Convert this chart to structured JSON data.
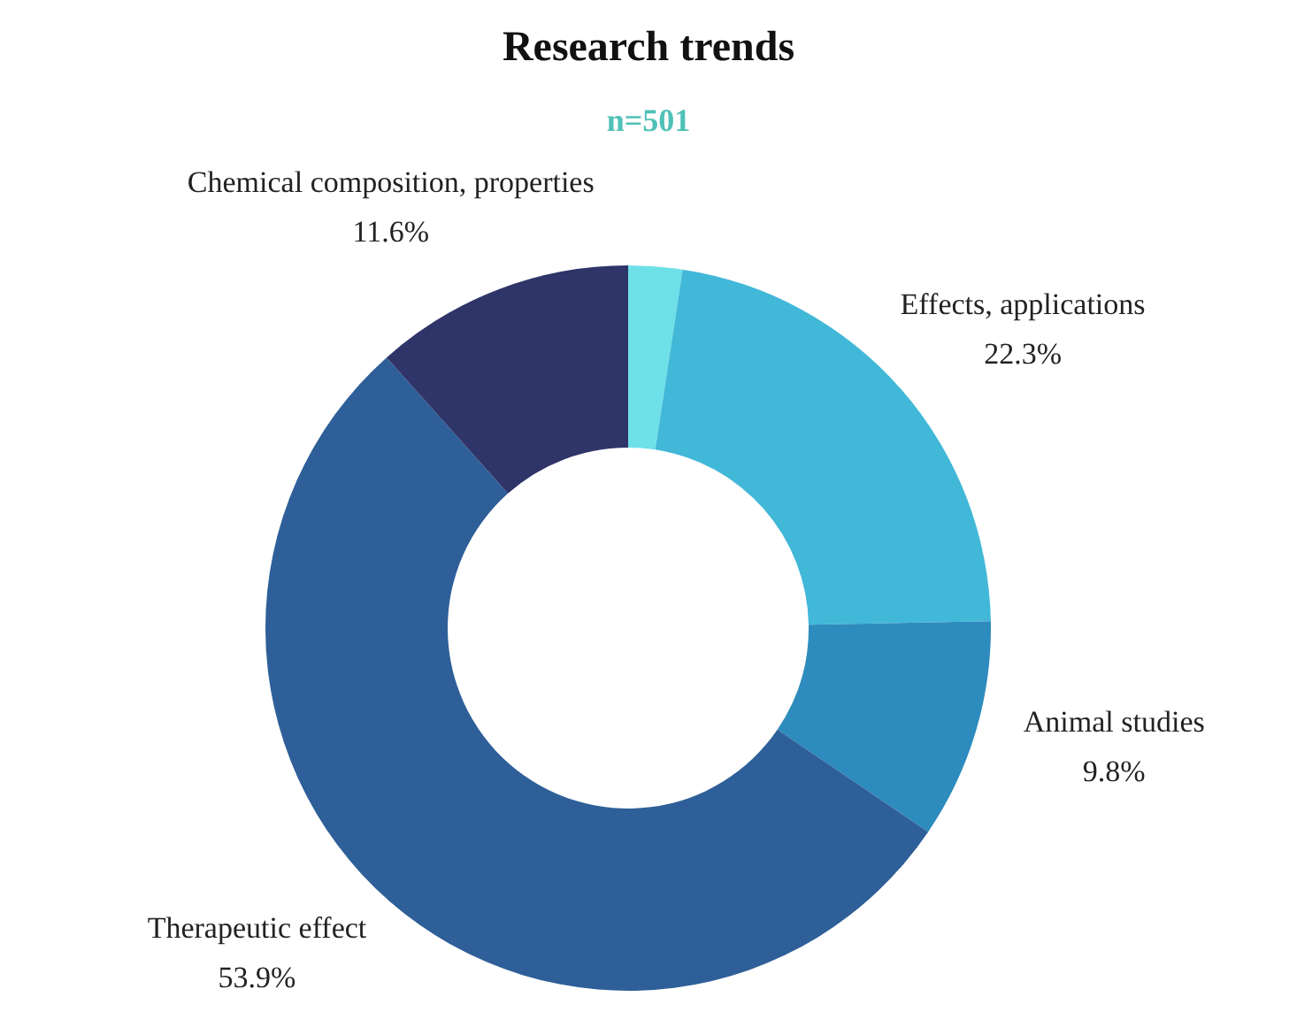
{
  "chart_data": {
    "type": "donut",
    "title": "Research trends",
    "subtitle": "n=501",
    "categories": [
      null,
      "Effects, applications",
      "Animal studies",
      "Therapeutic effect",
      "Chemical composition, properties"
    ],
    "values": [
      2.4,
      22.3,
      9.8,
      53.9,
      11.6
    ],
    "value_labels": [
      null,
      "22.3%",
      "9.8%",
      "53.9%",
      "11.6%"
    ],
    "colors": [
      "#6ee0e8",
      "#42b8d8",
      "#2e8bbd",
      "#2e5f98",
      "#2f3469"
    ],
    "legend": false
  }
}
